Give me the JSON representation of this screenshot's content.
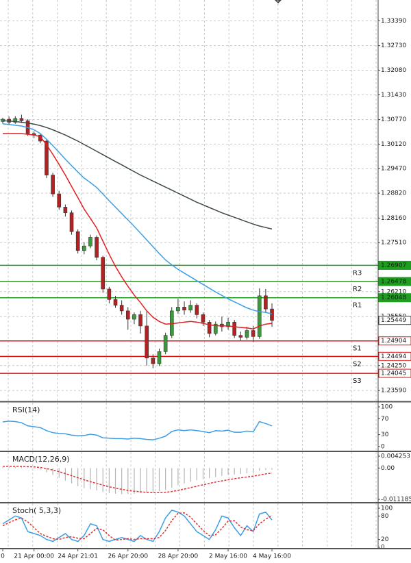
{
  "chart_data": [
    {
      "type": "candlestick",
      "categories": [
        "0",
        null,
        null,
        null,
        null,
        "21 Apr 00:00",
        null,
        null,
        null,
        null,
        null,
        null,
        "24 Apr 21:01",
        null,
        null,
        null,
        null,
        null,
        null,
        null,
        "26 Apr 20:00",
        null,
        null,
        null,
        null,
        null,
        null,
        null,
        "28 Apr 20:00",
        null,
        null,
        null,
        null,
        null,
        null,
        null,
        "2 May 16:00",
        null,
        null,
        null,
        null,
        null,
        null,
        "4 May 16:00"
      ],
      "ohlc": [
        [
          1.3072,
          1.3082,
          1.3066,
          1.3078
        ],
        [
          1.3078,
          1.3085,
          1.3064,
          1.307
        ],
        [
          1.307,
          1.3086,
          1.3066,
          1.308
        ],
        [
          1.308,
          1.309,
          1.3068,
          1.3074
        ],
        [
          1.3074,
          1.3078,
          1.3034,
          1.304
        ],
        [
          1.304,
          1.3046,
          1.3028,
          1.3036
        ],
        [
          1.3036,
          1.304,
          1.3014,
          1.302
        ],
        [
          1.302,
          1.3024,
          1.2922,
          1.293
        ],
        [
          1.293,
          1.2936,
          1.2872,
          1.288
        ],
        [
          1.288,
          1.2888,
          1.2838,
          1.2845
        ],
        [
          1.2845,
          1.2852,
          1.282,
          1.283
        ],
        [
          1.283,
          1.2836,
          1.2772,
          1.278
        ],
        [
          1.278,
          1.2786,
          1.2722,
          1.273
        ],
        [
          1.273,
          1.2752,
          1.272,
          1.2742
        ],
        [
          1.2742,
          1.2772,
          1.2736,
          1.2765
        ],
        [
          1.2765,
          1.277,
          1.2704,
          1.2712
        ],
        [
          1.2712,
          1.2716,
          1.2618,
          1.2628
        ],
        [
          1.2628,
          1.2634,
          1.259,
          1.26
        ],
        [
          1.26,
          1.261,
          1.2578,
          1.2585
        ],
        [
          1.2585,
          1.2598,
          1.256,
          1.257
        ],
        [
          1.257,
          1.258,
          1.252,
          1.2548
        ],
        [
          1.2548,
          1.2566,
          1.2535,
          1.256
        ],
        [
          1.256,
          1.257,
          1.251,
          1.253
        ],
        [
          1.253,
          1.2568,
          1.2425,
          1.2445
        ],
        [
          1.2445,
          1.2455,
          1.2418,
          1.243
        ],
        [
          1.243,
          1.247,
          1.2424,
          1.2462
        ],
        [
          1.2462,
          1.2512,
          1.2455,
          1.2505
        ],
        [
          1.2505,
          1.258,
          1.2498,
          1.257
        ],
        [
          1.257,
          1.2602,
          1.2562,
          1.258
        ],
        [
          1.258,
          1.2595,
          1.256,
          1.2572
        ],
        [
          1.2572,
          1.2598,
          1.2565,
          1.2585
        ],
        [
          1.2585,
          1.259,
          1.255,
          1.256
        ],
        [
          1.256,
          1.2566,
          1.253,
          1.254
        ],
        [
          1.254,
          1.2546,
          1.25,
          1.251
        ],
        [
          1.251,
          1.2542,
          1.2505,
          1.2535
        ],
        [
          1.2535,
          1.2555,
          1.2515,
          1.2528
        ],
        [
          1.2528,
          1.2552,
          1.252,
          1.254
        ],
        [
          1.254,
          1.2546,
          1.2498,
          1.2505
        ],
        [
          1.2505,
          1.2515,
          1.2492,
          1.25
        ],
        [
          1.25,
          1.2528,
          1.2494,
          1.2518
        ],
        [
          1.2518,
          1.253,
          1.2488,
          1.2502
        ],
        [
          1.2502,
          1.263,
          1.2496,
          1.261
        ],
        [
          1.261,
          1.2628,
          1.2565,
          1.2575
        ],
        [
          1.2575,
          1.259,
          1.2528,
          1.25449
        ]
      ],
      "up_color": "#3c9a3c",
      "down_color": "#b22222",
      "lines": [
        {
          "color": "#3a9ee8",
          "values": [
            1.3066,
            1.3064,
            1.3062,
            1.306,
            1.3056,
            1.305,
            1.304,
            1.3025,
            1.3008,
            1.299,
            1.2972,
            1.2955,
            1.2938,
            1.2922,
            1.291,
            1.2897,
            1.288,
            1.2862,
            1.2845,
            1.2828,
            1.2811,
            1.2794,
            1.2776,
            1.2758,
            1.274,
            1.2722,
            1.2705,
            1.2692,
            1.268,
            1.267,
            1.266,
            1.265,
            1.264,
            1.263,
            1.262,
            1.2611,
            1.2602,
            1.2594,
            1.2586,
            1.2578,
            1.2572,
            1.2568,
            1.2566,
            1.2562
          ]
        },
        {
          "color": "#e02020",
          "values": [
            1.304,
            1.304,
            1.304,
            1.304,
            1.3038,
            1.3036,
            1.3032,
            1.301,
            1.2985,
            1.2958,
            1.293,
            1.29,
            1.287,
            1.284,
            1.2815,
            1.279,
            1.2755,
            1.272,
            1.2688,
            1.266,
            1.2635,
            1.2612,
            1.2592,
            1.257,
            1.2553,
            1.2542,
            1.2535,
            1.2536,
            1.2538,
            1.254,
            1.2542,
            1.254,
            1.2537,
            1.2533,
            1.2531,
            1.253,
            1.253,
            1.2528,
            1.2526,
            1.2525,
            1.2522,
            1.253,
            1.2535,
            1.2537
          ]
        },
        {
          "color": "#3d4a44",
          "values": [
            1.3074,
            1.3073,
            1.3072,
            1.307,
            1.3068,
            1.3065,
            1.3061,
            1.3056,
            1.305,
            1.3043,
            1.3036,
            1.3028,
            1.302,
            1.3011,
            1.3002,
            1.2993,
            1.2984,
            1.2975,
            1.2966,
            1.2957,
            1.2948,
            1.2939,
            1.293,
            1.2922,
            1.2914,
            1.2906,
            1.2898,
            1.289,
            1.2882,
            1.2874,
            1.2866,
            1.2858,
            1.2851,
            1.2844,
            1.2837,
            1.283,
            1.2824,
            1.2818,
            1.2812,
            1.2806,
            1.28,
            1.2795,
            1.2791,
            1.2787
          ]
        }
      ],
      "levels": [
        {
          "name": "R3",
          "value": 1.26907,
          "color": "#1e9e1e"
        },
        {
          "name": "R2",
          "value": 1.26478,
          "color": "#1e9e1e"
        },
        {
          "name": "R1",
          "value": 1.26048,
          "color": "#1e9e1e"
        },
        {
          "name": "S1",
          "value": 1.24904,
          "color": "#e01010"
        },
        {
          "name": "S2",
          "value": 1.24494,
          "color": "#e01010"
        },
        {
          "name": "S3",
          "value": 1.24045,
          "color": "#e01010"
        }
      ],
      "last_price": 1.25449,
      "ylim": [
        1.2332,
        1.3394
      ],
      "yticks": [
        {
          "value": 1.3339,
          "label": "1.33390"
        },
        {
          "value": 1.3273,
          "label": "1.32730"
        },
        {
          "value": 1.3208,
          "label": "1.32080"
        },
        {
          "value": 1.3143,
          "label": "1.31430"
        },
        {
          "value": 1.3077,
          "label": "1.30770"
        },
        {
          "value": 1.3012,
          "label": "1.30120"
        },
        {
          "value": 1.2947,
          "label": "1.29470"
        },
        {
          "value": 1.2882,
          "label": "1.28820"
        },
        {
          "value": 1.2816,
          "label": "1.28160"
        },
        {
          "value": 1.2751,
          "label": "1.27510"
        },
        {
          "value": 1.2621,
          "label": "1.26210"
        },
        {
          "value": 1.2555,
          "label": "1.25550"
        },
        {
          "value": 1.2425,
          "label": "1.24250"
        },
        {
          "value": 1.2359,
          "label": "1.23590"
        }
      ],
      "grid": true
    },
    {
      "type": "line",
      "title": "RSI(14)",
      "color": "#3a9ee8",
      "values": [
        62,
        64,
        63,
        60,
        52,
        50,
        48,
        40,
        35,
        33,
        32,
        29,
        27,
        28,
        31,
        29,
        22,
        21,
        20,
        20,
        19,
        21,
        20,
        18,
        17,
        21,
        26,
        38,
        42,
        40,
        42,
        40,
        38,
        35,
        40,
        39,
        41,
        36,
        36,
        39,
        37,
        63,
        58,
        52
      ],
      "ylim": [
        0,
        100
      ],
      "yticks": [
        100,
        70,
        30,
        0
      ]
    },
    {
      "type": "macd",
      "title": "MACD(12,26,9)",
      "color": "#b4b4b4",
      "signal_color": "#e03030",
      "values": [
        0.0003,
        0.0004,
        0.0005,
        0.0005,
        0.0002,
        -0.0002,
        -0.0006,
        -0.0015,
        -0.0025,
        -0.0035,
        -0.0045,
        -0.0055,
        -0.0065,
        -0.0072,
        -0.0076,
        -0.008,
        -0.0086,
        -0.009,
        -0.0092,
        -0.0093,
        -0.0093,
        -0.0092,
        -0.009,
        -0.009,
        -0.0088,
        -0.0083,
        -0.0078,
        -0.007,
        -0.0062,
        -0.0055,
        -0.0049,
        -0.0044,
        -0.004,
        -0.0036,
        -0.0032,
        -0.0028,
        -0.0025,
        -0.0023,
        -0.0021,
        -0.0019,
        -0.0017,
        -0.001,
        -0.0007,
        -0.0006
      ],
      "signal": [
        0.0006,
        0.0006,
        0.0006,
        0.0006,
        0.0005,
        0.0004,
        0.0002,
        -0.0002,
        -0.0007,
        -0.0013,
        -0.002,
        -0.0027,
        -0.0035,
        -0.0042,
        -0.0049,
        -0.0055,
        -0.0061,
        -0.0067,
        -0.0072,
        -0.0076,
        -0.008,
        -0.0083,
        -0.0085,
        -0.0087,
        -0.0088,
        -0.0088,
        -0.0087,
        -0.0084,
        -0.008,
        -0.0075,
        -0.007,
        -0.0065,
        -0.006,
        -0.0055,
        -0.005,
        -0.0046,
        -0.0042,
        -0.0038,
        -0.0035,
        -0.0032,
        -0.0029,
        -0.0025,
        -0.0021,
        -0.0018
      ],
      "ylim": [
        -0.011185,
        0.004253
      ],
      "yticks": [
        0.004253,
        {
          "value": 0,
          "label": "0.00"
        },
        -0.011185
      ]
    },
    {
      "type": "stochastic",
      "title": "Stoch( 5,3,3)",
      "series": [
        {
          "color": "#3a9ee8",
          "values": [
            60,
            70,
            80,
            75,
            40,
            35,
            30,
            20,
            15,
            25,
            35,
            20,
            15,
            30,
            60,
            55,
            20,
            15,
            20,
            25,
            20,
            15,
            30,
            20,
            15,
            40,
            75,
            95,
            90,
            80,
            60,
            40,
            30,
            20,
            45,
            80,
            75,
            50,
            30,
            55,
            40,
            85,
            90,
            70
          ]
        },
        {
          "color": "#e03030",
          "dashed": true,
          "values": [
            55,
            63,
            70,
            75,
            65,
            50,
            35,
            28,
            22,
            20,
            25,
            27,
            23,
            22,
            35,
            48,
            45,
            30,
            18,
            20,
            22,
            20,
            22,
            22,
            22,
            25,
            43,
            68,
            87,
            88,
            77,
            60,
            43,
            30,
            32,
            48,
            67,
            68,
            52,
            45,
            42,
            60,
            72,
            82
          ]
        }
      ],
      "ylim": [
        0,
        100
      ],
      "yticks": [
        100,
        80,
        20,
        0
      ]
    }
  ]
}
